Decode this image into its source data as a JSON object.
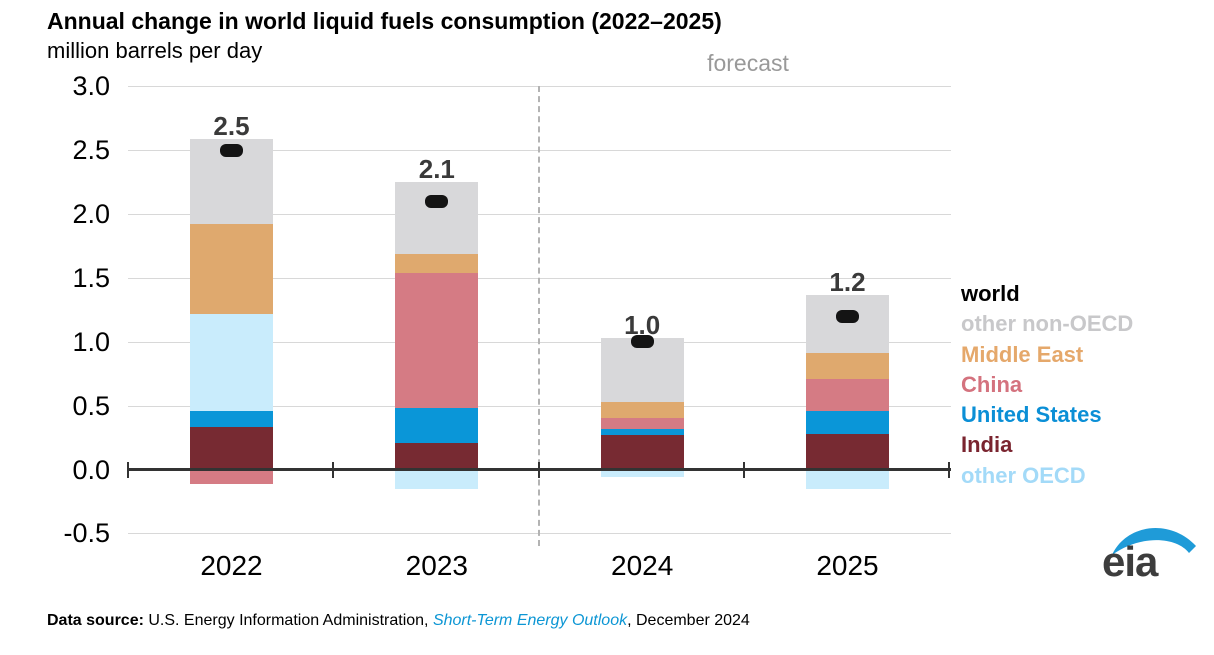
{
  "title": "Annual change in world liquid fuels consumption (2022–2025)",
  "subtitle": "million barrels per day",
  "forecast_label": "forecast",
  "legend": {
    "items": [
      {
        "label": "world",
        "color": "#000000"
      },
      {
        "label": "other non-OECD",
        "color": "#c8c8ca"
      },
      {
        "label": "Middle East",
        "color": "#e5a86b"
      },
      {
        "label": "China",
        "color": "#d4727e"
      },
      {
        "label": "United States",
        "color": "#0b8fd6"
      },
      {
        "label": "India",
        "color": "#7a242f"
      },
      {
        "label": "other OECD",
        "color": "#a3daf8"
      }
    ]
  },
  "footer": {
    "label_bold": "Data source:",
    "text_before_link": " U.S. Energy Information Administration, ",
    "link_text": "Short-Term Energy Outlook",
    "text_after_link": ", December 2024",
    "link_color": "#0c96d4"
  },
  "logo_text": "eia",
  "chart_data": {
    "type": "bar",
    "stacked": true,
    "title": "Annual change in world liquid fuels consumption (2022–2025)",
    "ylabel": "million barrels per day",
    "categories": [
      "2022",
      "2023",
      "2024",
      "2025"
    ],
    "series": [
      {
        "name": "other non-OECD",
        "color": "#d8d8da",
        "values": [
          0.67,
          0.56,
          0.5,
          0.46
        ]
      },
      {
        "name": "Middle East",
        "color": "#dfa96e",
        "values": [
          0.7,
          0.15,
          0.13,
          0.2
        ]
      },
      {
        "name": "China",
        "color": "#d57b84",
        "values": [
          -0.11,
          1.06,
          0.08,
          0.25
        ]
      },
      {
        "name": "United States",
        "color": "#0a96d8",
        "values": [
          0.13,
          0.27,
          0.05,
          0.18
        ]
      },
      {
        "name": "India",
        "color": "#772a32",
        "values": [
          0.33,
          0.21,
          0.27,
          0.28
        ]
      },
      {
        "name": "other OECD",
        "color": "#c9ecfc",
        "values": [
          0.76,
          -0.15,
          -0.06,
          -0.15
        ]
      }
    ],
    "world_series": {
      "name": "world",
      "color": "#141414",
      "values": [
        2.5,
        2.1,
        1.0,
        1.2
      ],
      "labels": [
        "2.5",
        "2.1",
        "1.0",
        "1.2"
      ]
    },
    "stack_order_bottom_to_top": [
      "India",
      "United States",
      "China",
      "other OECD",
      "Middle East",
      "other non-OECD"
    ],
    "ylim": [
      -0.5,
      3.0
    ],
    "yticks": [
      {
        "value": 3.0,
        "label": "3.0"
      },
      {
        "value": 2.5,
        "label": "2.5"
      },
      {
        "value": 2.0,
        "label": "2.0"
      },
      {
        "value": 1.5,
        "label": "1.5"
      },
      {
        "value": 1.0,
        "label": "1.0"
      },
      {
        "value": 0.5,
        "label": "0.5"
      },
      {
        "value": 0.0,
        "label": "0.0"
      },
      {
        "value": -0.5,
        "label": "-0.5"
      }
    ],
    "forecast_divider_between": [
      "2023",
      "2024"
    ],
    "grid": true,
    "legend_position": "right"
  }
}
